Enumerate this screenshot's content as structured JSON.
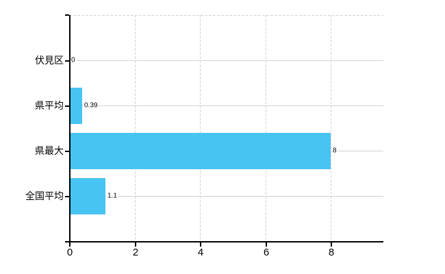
{
  "chart_data": {
    "type": "bar",
    "orientation": "horizontal",
    "categories": [
      "伏見区",
      "県平均",
      "県最大",
      "全国平均"
    ],
    "values": [
      0,
      0.39,
      8,
      1.1
    ],
    "value_labels": [
      "0",
      "0.39",
      "8",
      "1.1"
    ],
    "x_tick_labels": [
      "0",
      "2",
      "4",
      "6",
      "8"
    ],
    "x_tick_values": [
      0,
      2,
      4,
      6,
      8
    ],
    "xlim": [
      0,
      9.6
    ],
    "grid": true,
    "bar_color": "#47c4f1",
    "axis_color": "#000000",
    "horizontal_gridline_color": "#ccd6cc",
    "vertical_gridline_color": "#d5d2d8"
  }
}
